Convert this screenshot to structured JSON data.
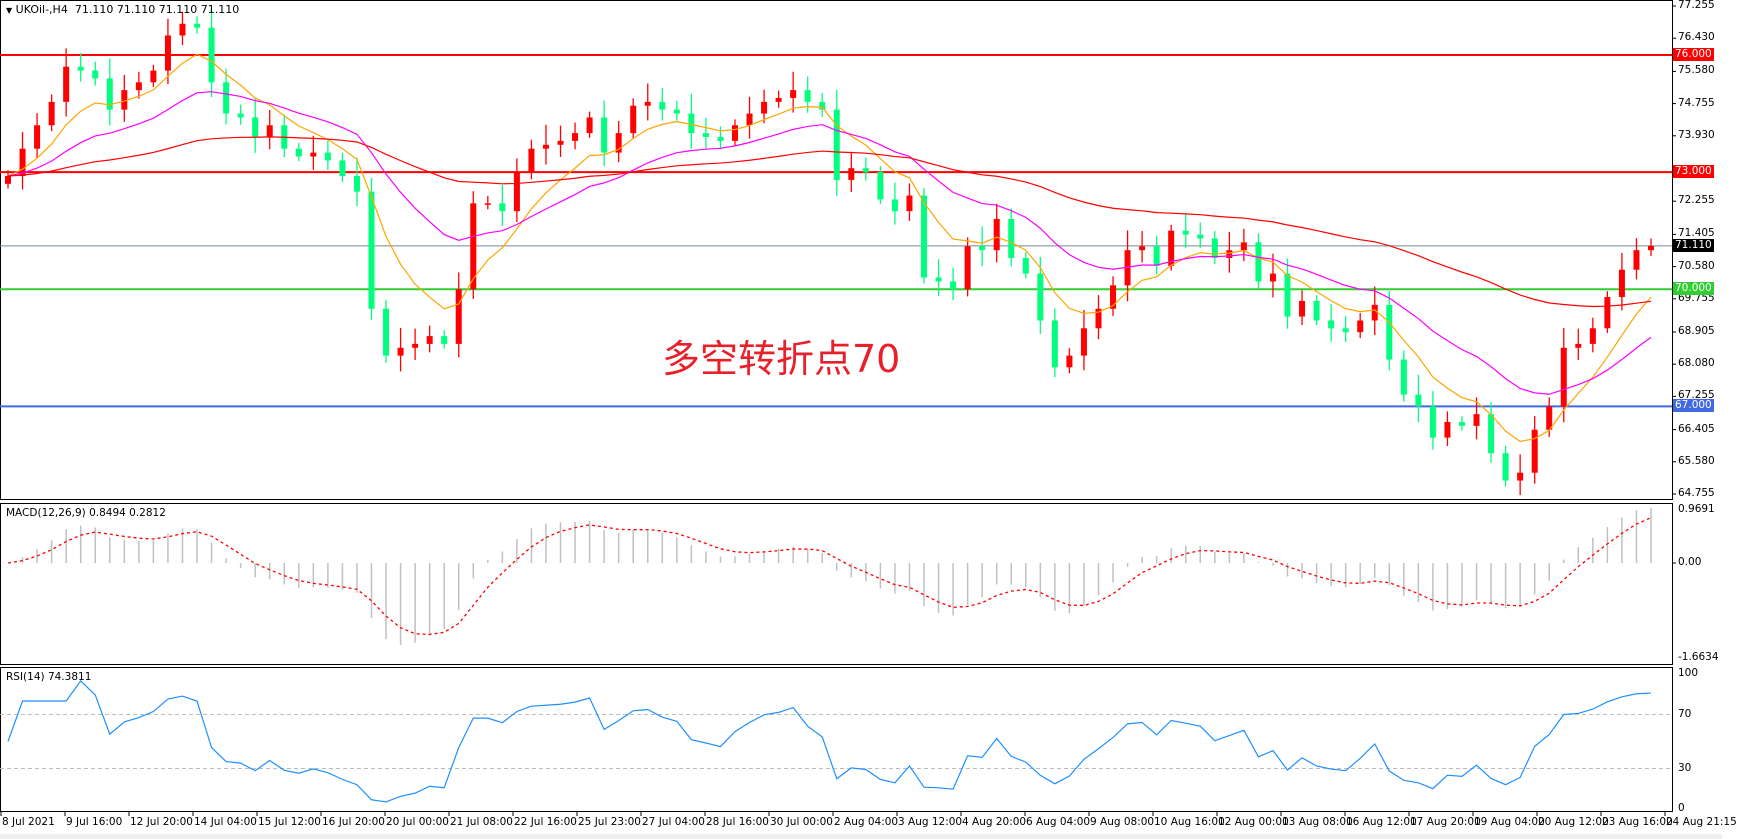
{
  "header": {
    "symbol": "UKOil-,H4",
    "ohlc": "71.110 71.110 71.110 71.110"
  },
  "annotation": "多空转折点70",
  "colors": {
    "bull": "#ff0000",
    "bear": "#00ff7f",
    "ma_fast": "#ffa500",
    "ma_mid": "#ff00ff",
    "ma_slow": "#ff0000",
    "macd_hist": "#c0c0c0",
    "macd_signal": "#ff0000",
    "rsi": "#1e90ff"
  },
  "price_levels": [
    {
      "label": "76.000",
      "value": 76.0,
      "color": "#ff0000"
    },
    {
      "label": "73.000",
      "value": 73.0,
      "color": "#ff0000"
    },
    {
      "label": "71.110",
      "value": 71.11,
      "color": "#000000"
    },
    {
      "label": "70.000",
      "value": 70.0,
      "color": "#32cd32"
    },
    {
      "label": "67.000",
      "value": 67.0,
      "color": "#4169e1"
    }
  ],
  "macd": {
    "label": "MACD(12,26,9) 0.8494 0.2812",
    "ticks": [
      "0.9691",
      "0.00",
      "-1.6634"
    ]
  },
  "rsi": {
    "label": "RSI(14) 74.3811",
    "ticks": [
      "100",
      "70",
      "30",
      "0"
    ]
  },
  "chart_data": {
    "type": "candlestick",
    "title": "UKOil-,H4",
    "ylim": [
      64.755,
      77.255
    ],
    "y_ticks": [
      "77.255",
      "76.430",
      "75.580",
      "74.755",
      "73.930",
      "72.255",
      "71.405",
      "70.580",
      "69.755",
      "68.905",
      "68.080",
      "67.255",
      "66.405",
      "65.580",
      "64.755"
    ],
    "x_ticks": [
      "8 Jul 2021",
      "9 Jul 16:00",
      "12 Jul 20:00",
      "14 Jul 04:00",
      "15 Jul 12:00",
      "16 Jul 20:00",
      "20 Jul 00:00",
      "21 Jul 08:00",
      "22 Jul 16:00",
      "25 Jul 23:00",
      "27 Jul 04:00",
      "28 Jul 16:00",
      "30 Jul 00:00",
      "2 Aug 04:00",
      "3 Aug 12:00",
      "4 Aug 20:00",
      "6 Aug 04:00",
      "9 Aug 08:00",
      "10 Aug 16:00",
      "12 Aug 00:00",
      "13 Aug 08:00",
      "16 Aug 12:00",
      "17 Aug 20:00",
      "19 Aug 04:00",
      "20 Aug 12:00",
      "23 Aug 16:00",
      "24 Aug 21:15"
    ],
    "closes": [
      72.9,
      73.6,
      74.2,
      74.8,
      75.7,
      75.6,
      75.4,
      74.6,
      75.1,
      75.3,
      75.6,
      76.5,
      76.8,
      76.7,
      75.3,
      74.5,
      74.4,
      73.9,
      74.2,
      73.6,
      73.4,
      73.5,
      73.3,
      72.9,
      72.5,
      69.5,
      68.3,
      68.5,
      68.6,
      68.8,
      68.6,
      70.0,
      72.2,
      72.2,
      72.0,
      73.0,
      73.6,
      73.7,
      73.8,
      74.0,
      74.4,
      73.5,
      74.0,
      74.7,
      74.8,
      74.6,
      74.5,
      74.0,
      73.9,
      73.8,
      74.2,
      74.5,
      74.8,
      74.9,
      75.1,
      74.8,
      74.6,
      72.8,
      73.1,
      73.0,
      72.3,
      72.0,
      72.4,
      70.3,
      70.2,
      70.0,
      71.1,
      71.0,
      71.8,
      70.8,
      70.4,
      69.2,
      68.0,
      68.3,
      69.0,
      69.5,
      70.1,
      71.0,
      71.1,
      70.6,
      71.5,
      71.4,
      71.3,
      70.8,
      71.0,
      71.2,
      70.2,
      70.4,
      69.3,
      69.7,
      69.2,
      69.0,
      68.9,
      69.2,
      69.6,
      68.2,
      67.3,
      67.0,
      66.2,
      66.6,
      66.5,
      66.8,
      65.8,
      65.1,
      65.3,
      66.4,
      67.0,
      68.5,
      68.6,
      69.0,
      69.8,
      70.5,
      71.0,
      71.11
    ]
  }
}
